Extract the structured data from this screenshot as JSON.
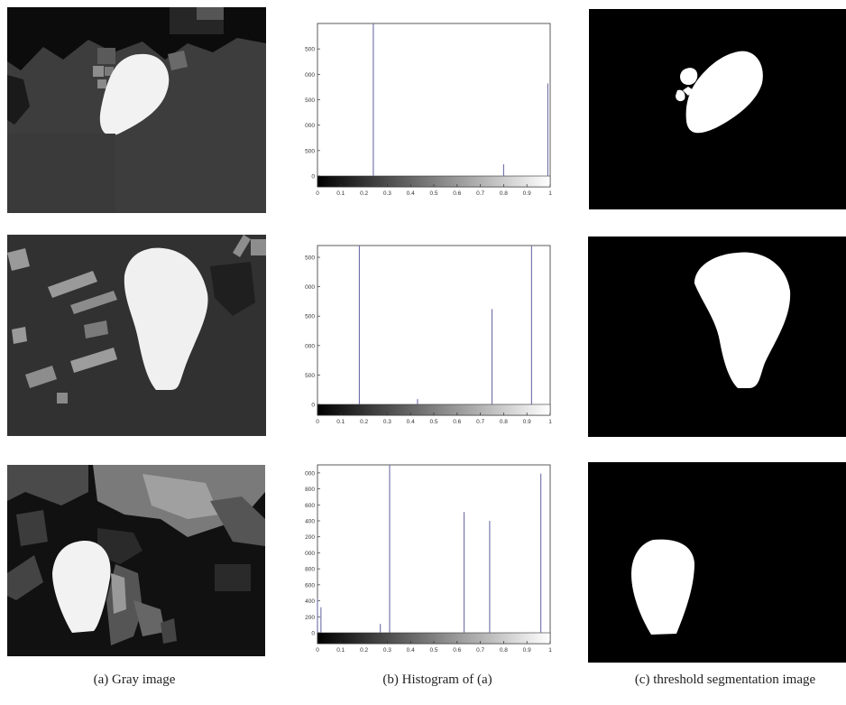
{
  "captions": {
    "a": "(a) Gray image",
    "b": "(b) Histogram of (a)",
    "c": "(c) threshold segmentation image"
  },
  "colors": {
    "histogram_line": "#6d6da6",
    "axis": "#333333",
    "mask_background": "#000000",
    "mask_foreground": "#ffffff"
  },
  "chart_data": [
    {
      "type": "bar",
      "title": "",
      "xlabel": "",
      "ylabel": "",
      "xlim": [
        0,
        1
      ],
      "ylim": [
        0,
        3000
      ],
      "x_ticks": [
        "0",
        "0.1",
        "0.2",
        "0.3",
        "0.4",
        "0.5",
        "0.6",
        "0.7",
        "0.8",
        "0.9",
        "1"
      ],
      "y_ticks": [
        "0",
        "500",
        "1000",
        "1500",
        "2000",
        "2500"
      ],
      "colorbar": "grayscale",
      "series": [
        {
          "x": [
            0.24,
            0.8,
            0.99
          ],
          "values": [
            3000,
            230,
            1820
          ]
        }
      ]
    },
    {
      "type": "bar",
      "title": "",
      "xlabel": "",
      "ylabel": "",
      "xlim": [
        0,
        1
      ],
      "ylim": [
        0,
        2700
      ],
      "x_ticks": [
        "0",
        "0.1",
        "0.2",
        "0.3",
        "0.4",
        "0.5",
        "0.6",
        "0.7",
        "0.8",
        "0.9",
        "1"
      ],
      "y_ticks": [
        "0",
        "500",
        "1000",
        "1500",
        "2000",
        "2500"
      ],
      "colorbar": "grayscale",
      "series": [
        {
          "x": [
            0.18,
            0.43,
            0.75,
            0.92
          ],
          "values": [
            2700,
            90,
            1620,
            2700
          ]
        }
      ]
    },
    {
      "type": "bar",
      "title": "",
      "xlabel": "",
      "ylabel": "",
      "xlim": [
        0,
        1
      ],
      "ylim": [
        0,
        2100
      ],
      "x_ticks": [
        "0",
        "0.1",
        "0.2",
        "0.3",
        "0.4",
        "0.5",
        "0.6",
        "0.7",
        "0.8",
        "0.9",
        "1"
      ],
      "y_ticks": [
        "0",
        "200",
        "400",
        "600",
        "800",
        "1000",
        "1200",
        "1400",
        "1600",
        "1800",
        "2000"
      ],
      "colorbar": "grayscale",
      "series": [
        {
          "x": [
            0.0,
            0.015,
            0.27,
            0.31,
            0.63,
            0.74,
            0.96
          ],
          "values": [
            430,
            320,
            110,
            2100,
            1510,
            1400,
            1990
          ]
        }
      ]
    }
  ]
}
